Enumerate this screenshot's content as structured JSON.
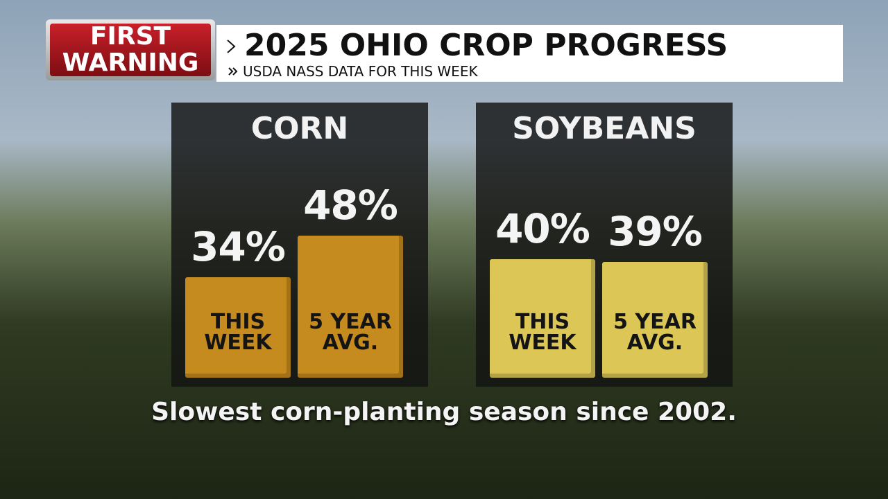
{
  "header": {
    "badge": [
      "FIRST",
      "WARNING"
    ],
    "title": "2025 OHIO CROP PROGRESS",
    "subtitle": "USDA NASS DATA FOR THIS WEEK"
  },
  "chart_data": [
    {
      "type": "bar",
      "title": "CORN",
      "categories": [
        "THIS WEEK",
        "5 YEAR AVG."
      ],
      "values": [
        34,
        48
      ],
      "value_labels": [
        "34%",
        "48%"
      ],
      "color": "#c68b1f"
    },
    {
      "type": "bar",
      "title": "SOYBEANS",
      "categories": [
        "THIS WEEK",
        "5 YEAR AVG."
      ],
      "values": [
        40,
        39
      ],
      "value_labels": [
        "40%",
        "39%"
      ],
      "color": "#dcc656"
    }
  ],
  "footnote": "Slowest corn-planting season since 2002."
}
